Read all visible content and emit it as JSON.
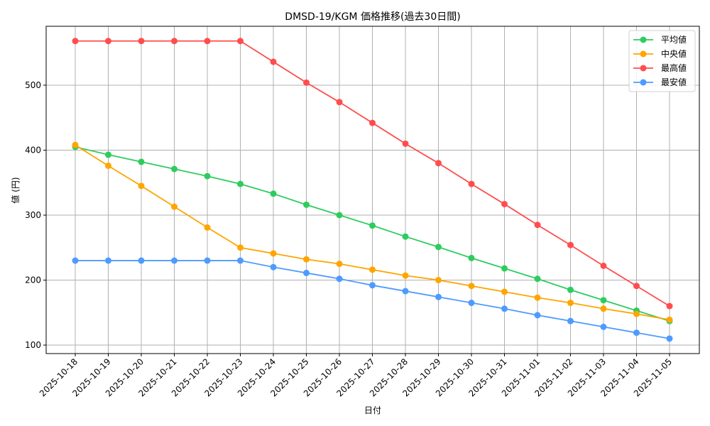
{
  "chart_data": {
    "type": "line",
    "title": "DMSD-19/KGM 価格推移(過去30日間)",
    "xlabel": "日付",
    "ylabel": "値 (円)",
    "ylim": [
      87,
      587
    ],
    "yticks": [
      100,
      200,
      300,
      400,
      500
    ],
    "grid": true,
    "legend_position": "upper right",
    "x": [
      "2025-10-18",
      "2025-10-19",
      "2025-10-20",
      "2025-10-21",
      "2025-10-22",
      "2025-10-23",
      "2025-10-24",
      "2025-10-25",
      "2025-10-26",
      "2025-10-27",
      "2025-10-28",
      "2025-10-29",
      "2025-10-30",
      "2025-10-31",
      "2025-11-01",
      "2025-11-02",
      "2025-11-03",
      "2025-11-04",
      "2025-11-05"
    ],
    "series": [
      {
        "name": "平均値",
        "color": "#2ecc5f",
        "values": [
          405,
          393,
          382,
          371,
          360,
          348,
          333,
          316,
          300,
          284,
          267,
          251,
          234,
          218,
          202,
          185,
          169,
          153,
          137
        ]
      },
      {
        "name": "中央値",
        "color": "#ffa500",
        "values": [
          408,
          376,
          345,
          313,
          281,
          250,
          241,
          232,
          225,
          216,
          207,
          200,
          191,
          182,
          173,
          165,
          156,
          148,
          139
        ]
      },
      {
        "name": "最高値",
        "color": "#ff4d4d",
        "values": [
          568,
          568,
          568,
          568,
          568,
          568,
          536,
          504,
          474,
          442,
          410,
          380,
          348,
          317,
          285,
          254,
          222,
          191,
          160
        ]
      },
      {
        "name": "最安値",
        "color": "#4d9bff",
        "values": [
          230,
          230,
          230,
          230,
          230,
          230,
          220,
          211,
          202,
          192,
          183,
          174,
          165,
          156,
          146,
          137,
          128,
          119,
          110
        ]
      }
    ]
  }
}
